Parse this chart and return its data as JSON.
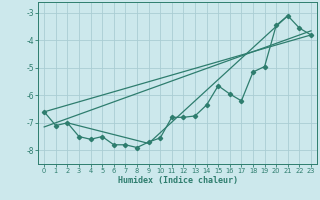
{
  "xlabel": "Humidex (Indice chaleur)",
  "bg_color": "#cce8ec",
  "line_color": "#2e7d6e",
  "grid_color": "#aacdd4",
  "xlim": [
    -0.5,
    23.5
  ],
  "ylim": [
    -8.5,
    -2.6
  ],
  "yticks": [
    -8,
    -7,
    -6,
    -5,
    -4,
    -3
  ],
  "xticks": [
    0,
    1,
    2,
    3,
    4,
    5,
    6,
    7,
    8,
    9,
    10,
    11,
    12,
    13,
    14,
    15,
    16,
    17,
    18,
    19,
    20,
    21,
    22,
    23
  ],
  "data_x": [
    0,
    1,
    2,
    3,
    4,
    5,
    6,
    7,
    8,
    9,
    10,
    11,
    12,
    13,
    14,
    15,
    16,
    17,
    18,
    19,
    20,
    21,
    22,
    23
  ],
  "data_y": [
    -6.6,
    -7.1,
    -7.0,
    -7.5,
    -7.6,
    -7.5,
    -7.8,
    -7.8,
    -7.9,
    -7.7,
    -7.55,
    -6.8,
    -6.8,
    -6.75,
    -6.35,
    -5.65,
    -5.95,
    -6.2,
    -5.15,
    -4.95,
    -3.45,
    -3.1,
    -3.55,
    -3.8
  ],
  "line1_x": [
    0,
    23
  ],
  "line1_y": [
    -6.6,
    -3.8
  ],
  "line2_x": [
    0,
    23
  ],
  "line2_y": [
    -7.15,
    -3.65
  ],
  "line3_x": [
    2,
    9,
    21
  ],
  "line3_y": [
    -7.0,
    -7.75,
    -3.1
  ]
}
